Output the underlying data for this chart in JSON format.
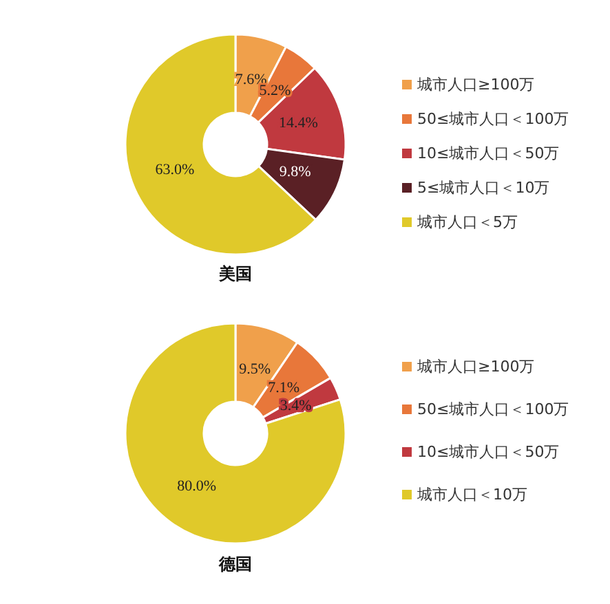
{
  "chart_data": [
    {
      "type": "donut",
      "title": "美国",
      "categories": [
        "城市人口≥100万",
        "50≤城市人口＜100万",
        "10≤城市人口＜50万",
        "5≤城市人口＜10万",
        "城市人口＜5万"
      ],
      "values": [
        7.6,
        5.2,
        14.4,
        9.8,
        63.0
      ],
      "colors": [
        "#f0a04b",
        "#e8773a",
        "#c0393f",
        "#5a2025",
        "#e0c92a"
      ],
      "value_labels": [
        "7.6%",
        "5.2%",
        "14.4%",
        "9.8%",
        "63.0%"
      ],
      "legend": "right"
    },
    {
      "type": "donut",
      "title": "德国",
      "categories": [
        "城市人口≥100万",
        "50≤城市人口＜100万",
        "10≤城市人口＜50万",
        "城市人口＜10万"
      ],
      "values": [
        9.5,
        7.1,
        3.4,
        80.0
      ],
      "colors": [
        "#f0a04b",
        "#e8773a",
        "#c0393f",
        "#e0c92a"
      ],
      "value_labels": [
        "9.5%",
        "7.1%",
        "3.4%",
        "80.0%"
      ],
      "legend": "right"
    }
  ]
}
